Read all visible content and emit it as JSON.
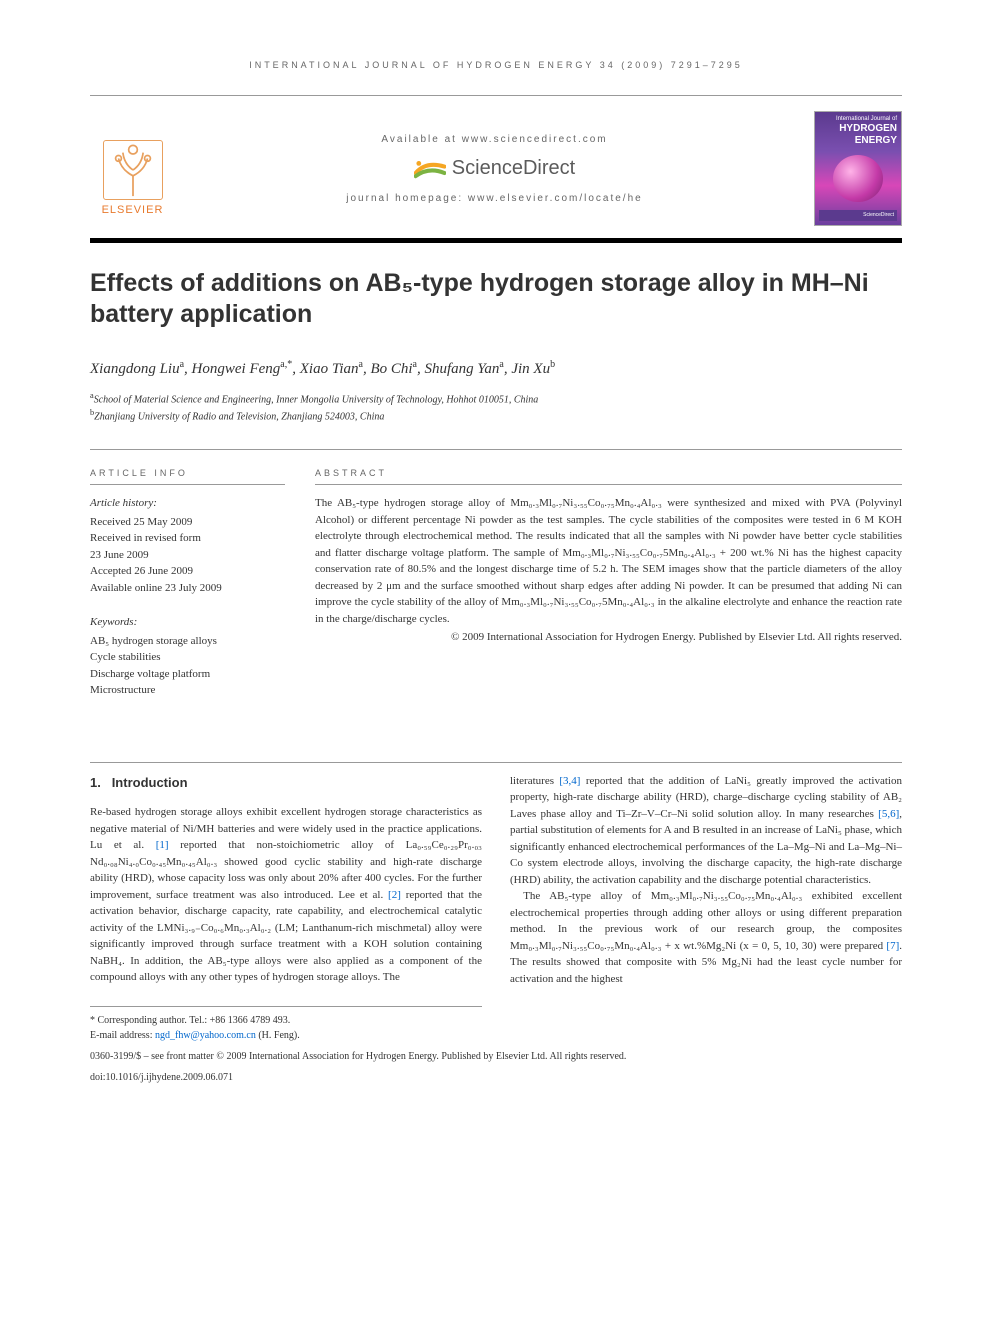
{
  "running_header": "INTERNATIONAL JOURNAL OF HYDROGEN ENERGY 34 (2009) 7291–7295",
  "masthead": {
    "elsevier_name": "ELSEVIER",
    "available_at": "Available at www.sciencedirect.com",
    "scidirect": "ScienceDirect",
    "homepage": "journal homepage: www.elsevier.com/locate/he",
    "cover_small": "International Journal of",
    "cover_big": "HYDROGEN ENERGY",
    "logo_colors": {
      "orange": "#f5a623",
      "green": "#7cb342"
    }
  },
  "title": "Effects of additions on AB₅-type hydrogen storage alloy in MH–Ni battery application",
  "authors_html": "Xiangdong Liu<sup>a</sup>, Hongwei Feng<sup>a,*</sup>, Xiao Tian<sup>a</sup>, Bo Chi<sup>a</sup>, Shufang Yan<sup>a</sup>, Jin Xu<sup>b</sup>",
  "affiliations": [
    {
      "sup": "a",
      "text": "School of Material Science and Engineering, Inner Mongolia University of Technology, Hohhot 010051, China"
    },
    {
      "sup": "b",
      "text": "Zhanjiang University of Radio and Television, Zhanjiang 524003, China"
    }
  ],
  "info_heading": "ARTICLE INFO",
  "abstract_heading": "ABSTRACT",
  "history": {
    "label": "Article history:",
    "received": "Received 25 May 2009",
    "revised1": "Received in revised form",
    "revised2": "23 June 2009",
    "accepted": "Accepted 26 June 2009",
    "online": "Available online 23 July 2009"
  },
  "keywords": {
    "label": "Keywords:",
    "k1": "AB₅ hydrogen storage alloys",
    "k2": "Cycle stabilities",
    "k3": "Discharge voltage platform",
    "k4": "Microstructure"
  },
  "abstract": "The AB₅-type hydrogen storage alloy of Mm₀.₃Ml₀.₇Ni₃.₅₅Co₀.₇₅Mn₀.₄Al₀.₃ were synthesized and mixed with PVA (Polyvinyl Alcohol) or different percentage Ni powder as the test samples. The cycle stabilities of the composites were tested in 6 M KOH electrolyte through electrochemical method. The results indicated that all the samples with Ni powder have better cycle stabilities and flatter discharge voltage platform. The sample of Mm₀.₃Ml₀.₇Ni₃.₅₅Co₀.₇5Mn₀.₄Al₀.₃ + 200 wt.% Ni has the highest capacity conservation rate of 80.5% and the longest discharge time of 5.2 h. The SEM images show that the particle diameters of the alloy decreased by 2 μm and the surface smoothed without sharp edges after adding Ni powder. It can be presumed that adding Ni can improve the cycle stability of the alloy of Mm₀.₃Ml₀.₇Ni₃.₅₅Co₀.₇5Mn₀.₄Al₀.₃ in the alkaline electrolyte and enhance the reaction rate in the charge/discharge cycles.",
  "copyright": "© 2009 International Association for Hydrogen Energy. Published by Elsevier Ltd. All rights reserved.",
  "section1": {
    "num": "1.",
    "title": "Introduction"
  },
  "body": {
    "col1_p1": "Re-based hydrogen storage alloys exhibit excellent hydrogen storage characteristics as negative material of Ni/MH batteries and were widely used in the practice applications. Lu et al. [1] reported that non-stoichiometric alloy of La₀.₅₉Ce₀.₂₉Pr₀.₀₃ Nd₀.₀₈Ni₄.₀Co₀.₄₅Mn₀.₄₅Al₀.₃ showed good cyclic stability and high-rate discharge ability (HRD), whose capacity loss was only about 20% after 400 cycles. For the further improvement, surface treatment was also introduced. Lee et al. [2] reported that the activation behavior, discharge capacity, rate capability, and electrochemical catalytic activity of the LMNi₃.₉₋Co₀.₆Mn₀.₃Al₀.₂ (LM; Lanthanum-rich mischmetal) alloy were significantly improved through surface treatment with a KOH solution containing NaBH₄. In addition, the AB₅-type alloys were also applied as a component of the compound alloys with any other types of hydrogen storage alloys. The",
    "col2_p1": "literatures [3,4] reported that the addition of LaNi₅ greatly improved the activation property, high-rate discharge ability (HRD), charge–discharge cycling stability of AB₂ Laves phase alloy and Ti–Zr–V–Cr–Ni solid solution alloy. In many researches [5,6], partial substitution of elements for A and B resulted in an increase of LaNi₅ phase, which significantly enhanced electrochemical performances of the La–Mg–Ni and La–Mg–Ni–Co system electrode alloys, involving the discharge capacity, the high-rate discharge (HRD) ability, the activation capability and the discharge potential characteristics.",
    "col2_p2": "The AB₅-type alloy of Mm₀.₃Ml₀.₇Ni₃.₅₅Co₀.₇₅Mn₀.₄Al₀.₃ exhibited excellent electrochemical properties through adding other alloys or using different preparation method. In the previous work of our research group, the composites Mm₀.₃Ml₀.₇Ni₃.₅₅Co₀.₇₅Mn₀.₄Al₀.₃ + x wt.%Mg₂Ni (x = 0, 5, 10, 30) were prepared [7]. The results showed that composite with 5% Mg₂Ni had the least cycle number for activation and the highest"
  },
  "refs": {
    "r1": "[1]",
    "r2": "[2]",
    "r34": "[3,4]",
    "r56": "[5,6]",
    "r7": "[7]"
  },
  "footnotes": {
    "corr": "* Corresponding author. Tel.: +86 1366 4789 493.",
    "email_label": "E-mail address: ",
    "email": "ngd_fhw@yahoo.com.cn",
    "email_who": " (H. Feng)."
  },
  "bottom": {
    "line1": "0360-3199/$ – see front matter © 2009 International Association for Hydrogen Energy. Published by Elsevier Ltd. All rights reserved.",
    "line2": "doi:10.1016/j.ijhydene.2009.06.071"
  },
  "colors": {
    "text": "#333333",
    "link": "#0066cc",
    "elsevier": "#e87a2e",
    "rule": "#999999"
  }
}
